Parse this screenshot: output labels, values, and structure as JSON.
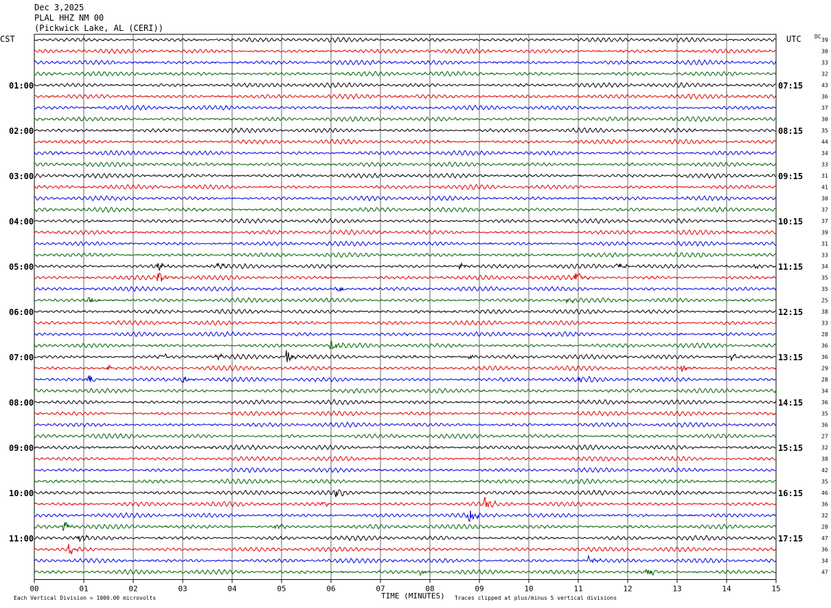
{
  "header": {
    "date": "Dec 3,2025",
    "station": "PLAL HHZ NM 00",
    "location": "(Pickwick Lake, AL (CERI))"
  },
  "left_tz": "CST",
  "right_tz": "UTC",
  "dc_label": "DC",
  "footer": {
    "scale_note": "Each Vertical Division = 1000.00 microvolts",
    "clip_note": "Traces clipped at plus/minus 5 vertical divisions"
  },
  "trace_colors": [
    "#000000",
    "#e00000",
    "#0000e0",
    "#006000"
  ],
  "chart_data": {
    "type": "line",
    "xlabel": "TIME (MINUTES)",
    "xlim": [
      0,
      15
    ],
    "x_ticks": [
      "00",
      "01",
      "02",
      "03",
      "04",
      "05",
      "06",
      "07",
      "08",
      "09",
      "10",
      "11",
      "12",
      "13",
      "14",
      "15"
    ],
    "left_time_labels": [
      "01:00",
      "02:00",
      "03:00",
      "04:00",
      "05:00",
      "06:00",
      "07:00",
      "08:00",
      "09:00",
      "10:00",
      "11:00"
    ],
    "right_time_labels": [
      "07:15",
      "08:15",
      "09:15",
      "10:15",
      "11:15",
      "12:15",
      "13:15",
      "14:15",
      "15:15",
      "16:15",
      "17:15"
    ],
    "dc_offsets": [
      39,
      30,
      33,
      32,
      43,
      36,
      37,
      30,
      35,
      44,
      34,
      33,
      31,
      41,
      30,
      37,
      37,
      39,
      31,
      33,
      34,
      35,
      35,
      25,
      38,
      33,
      28,
      36,
      36,
      29,
      28,
      34,
      36,
      35,
      36,
      27,
      32,
      38,
      42,
      35,
      46,
      36,
      32,
      28,
      47,
      36,
      34,
      47
    ],
    "events": [
      {
        "trace": 20,
        "minute": 2.5,
        "amp": 1.2
      },
      {
        "trace": 20,
        "minute": 3.7,
        "amp": 0.9
      },
      {
        "trace": 20,
        "minute": 8.6,
        "amp": 0.8
      },
      {
        "trace": 20,
        "minute": 11.8,
        "amp": 0.9
      },
      {
        "trace": 20,
        "minute": 14.6,
        "amp": 0.8
      },
      {
        "trace": 21,
        "minute": 2.5,
        "amp": 1.6
      },
      {
        "trace": 21,
        "minute": 10.95,
        "amp": 1.5
      },
      {
        "trace": 22,
        "minute": 6.1,
        "amp": 1.2
      },
      {
        "trace": 23,
        "minute": 1.1,
        "amp": 1.0
      },
      {
        "trace": 23,
        "minute": 10.8,
        "amp": 0.9
      },
      {
        "trace": 27,
        "minute": 6.0,
        "amp": 1.6
      },
      {
        "trace": 28,
        "minute": 5.1,
        "amp": 1.8
      },
      {
        "trace": 28,
        "minute": 3.7,
        "amp": 0.8
      },
      {
        "trace": 28,
        "minute": 2.6,
        "amp": 0.8
      },
      {
        "trace": 28,
        "minute": 8.8,
        "amp": 0.8
      },
      {
        "trace": 28,
        "minute": 14.1,
        "amp": 1.0
      },
      {
        "trace": 29,
        "minute": 1.5,
        "amp": 1.1
      },
      {
        "trace": 29,
        "minute": 13.1,
        "amp": 1.0
      },
      {
        "trace": 30,
        "minute": 1.1,
        "amp": 1.1
      },
      {
        "trace": 30,
        "minute": 3.0,
        "amp": 0.9
      },
      {
        "trace": 30,
        "minute": 11.0,
        "amp": 0.8
      },
      {
        "trace": 40,
        "minute": 6.1,
        "amp": 1.1
      },
      {
        "trace": 41,
        "minute": 9.1,
        "amp": 1.6
      },
      {
        "trace": 41,
        "minute": 5.8,
        "amp": 0.9
      },
      {
        "trace": 42,
        "minute": 8.8,
        "amp": 2.2
      },
      {
        "trace": 43,
        "minute": 0.6,
        "amp": 1.4
      },
      {
        "trace": 43,
        "minute": 4.9,
        "amp": 0.9
      },
      {
        "trace": 44,
        "minute": 0.9,
        "amp": 1.0
      },
      {
        "trace": 45,
        "minute": 0.7,
        "amp": 1.3
      },
      {
        "trace": 46,
        "minute": 11.2,
        "amp": 1.1
      },
      {
        "trace": 47,
        "minute": 12.4,
        "amp": 1.3
      },
      {
        "trace": 47,
        "minute": 7.8,
        "amp": 0.8
      }
    ]
  }
}
